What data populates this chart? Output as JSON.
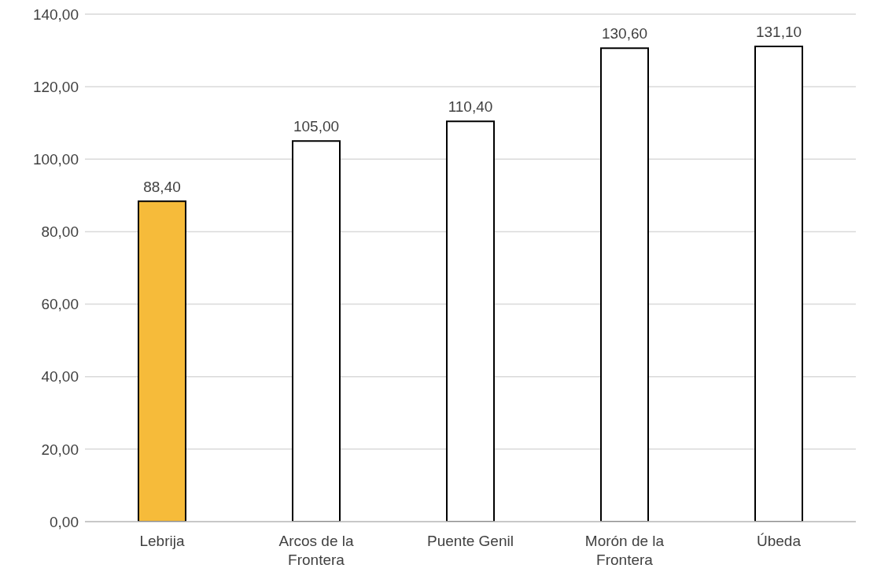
{
  "chart_data": {
    "type": "bar",
    "categories": [
      "Lebrija",
      "Arcos de la Frontera",
      "Puente Genil",
      "Morón de la Frontera",
      "Úbeda"
    ],
    "values": [
      88.4,
      105,
      110.4,
      130.6,
      131.1
    ],
    "colors": [
      "#f6bb3a",
      "#ffffff",
      "#ffffff",
      "#ffffff",
      "#ffffff"
    ],
    "value_labels": [
      "88,40",
      "105,00",
      "110,40",
      "130,60",
      "131,10"
    ],
    "ylim": [
      0,
      140
    ],
    "yticks": [
      {
        "value": 0,
        "label": "0,00"
      },
      {
        "value": 20,
        "label": "20,00"
      },
      {
        "value": 40,
        "label": "40,00"
      },
      {
        "value": 60,
        "label": "60,00"
      },
      {
        "value": 80,
        "label": "80,00"
      },
      {
        "value": 100,
        "label": "100,00"
      },
      {
        "value": 120,
        "label": "120,00"
      },
      {
        "value": 140,
        "label": "140,00"
      }
    ],
    "grid": "y",
    "legend": false
  }
}
